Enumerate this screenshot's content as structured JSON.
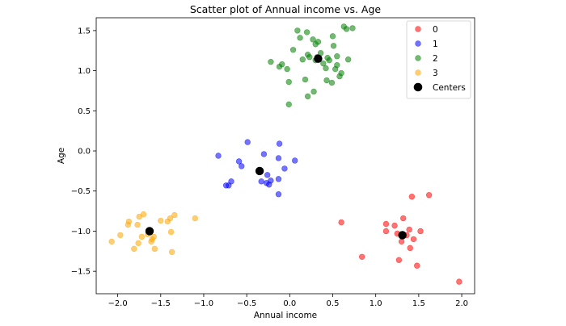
{
  "chart_data": {
    "type": "scatter",
    "title": "Scatter plot of Annual income vs. Age",
    "xlabel": "Annual income",
    "ylabel": "Age",
    "xlim": [
      -2.25,
      2.15
    ],
    "ylim": [
      -1.78,
      1.66
    ],
    "xticks": [
      "−2.0",
      "−1.5",
      "−1.0",
      "−0.5",
      "0.0",
      "0.5",
      "1.0",
      "1.5",
      "2.0"
    ],
    "xtick_values": [
      -2.0,
      -1.5,
      -1.0,
      -0.5,
      0.0,
      0.5,
      1.0,
      1.5,
      2.0
    ],
    "yticks": [
      "1.5",
      "1.0",
      "0.5",
      "0.0",
      "−0.5",
      "−1.0",
      "−1.5"
    ],
    "ytick_values": [
      1.5,
      1.0,
      0.5,
      0.0,
      -0.5,
      -1.0,
      -1.5
    ],
    "grid": false,
    "legend_position": "top-right",
    "series": [
      {
        "name": "0",
        "color": "#ff0000",
        "points": [
          [
            0.6,
            -0.89
          ],
          [
            0.84,
            -1.32
          ],
          [
            1.12,
            -0.91
          ],
          [
            1.12,
            -1.0
          ],
          [
            1.22,
            -0.93
          ],
          [
            1.25,
            -1.03
          ],
          [
            1.27,
            -1.36
          ],
          [
            1.3,
            -1.13
          ],
          [
            1.32,
            -0.84
          ],
          [
            1.36,
            -1.05
          ],
          [
            1.39,
            -0.98
          ],
          [
            1.4,
            -1.21
          ],
          [
            1.42,
            -0.57
          ],
          [
            1.44,
            -1.1
          ],
          [
            1.48,
            -1.43
          ],
          [
            1.52,
            -1.0
          ],
          [
            1.62,
            -0.55
          ],
          [
            1.97,
            -1.63
          ]
        ]
      },
      {
        "name": "1",
        "color": "#0000ff",
        "points": [
          [
            -0.83,
            -0.06
          ],
          [
            -0.74,
            -0.43
          ],
          [
            -0.71,
            -0.43
          ],
          [
            -0.68,
            -0.38
          ],
          [
            -0.59,
            -0.13
          ],
          [
            -0.56,
            -0.19
          ],
          [
            -0.49,
            0.11
          ],
          [
            -0.33,
            -0.38
          ],
          [
            -0.3,
            -0.04
          ],
          [
            -0.27,
            -0.4
          ],
          [
            -0.26,
            -0.3
          ],
          [
            -0.24,
            -0.42
          ],
          [
            -0.22,
            -0.37
          ],
          [
            -0.13,
            -0.09
          ],
          [
            -0.13,
            -0.35
          ],
          [
            -0.12,
            0.09
          ],
          [
            -0.13,
            -0.54
          ],
          [
            -0.06,
            -0.22
          ],
          [
            0.06,
            -0.12
          ]
        ]
      },
      {
        "name": "2",
        "color": "#008000",
        "points": [
          [
            -0.22,
            1.11
          ],
          [
            -0.12,
            1.05
          ],
          [
            -0.09,
            1.08
          ],
          [
            -0.03,
            1.02
          ],
          [
            -0.01,
            0.86
          ],
          [
            -0.01,
            0.58
          ],
          [
            0.04,
            1.26
          ],
          [
            0.09,
            1.5
          ],
          [
            0.12,
            1.41
          ],
          [
            0.15,
            1.14
          ],
          [
            0.18,
            0.89
          ],
          [
            0.2,
            1.48
          ],
          [
            0.21,
            1.2
          ],
          [
            0.21,
            0.68
          ],
          [
            0.23,
            1.17
          ],
          [
            0.27,
            1.39
          ],
          [
            0.3,
            1.13
          ],
          [
            0.33,
            1.36
          ],
          [
            0.36,
            1.22
          ],
          [
            0.39,
            1.09
          ],
          [
            0.42,
            1.03
          ],
          [
            0.43,
            0.88
          ],
          [
            0.46,
            1.13
          ],
          [
            0.49,
            0.85
          ],
          [
            0.5,
            1.43
          ],
          [
            0.51,
            1.31
          ],
          [
            0.53,
            1.02
          ],
          [
            0.55,
            1.18
          ],
          [
            0.55,
            1.07
          ],
          [
            0.58,
            0.93
          ],
          [
            0.6,
            0.97
          ],
          [
            0.63,
            1.55
          ],
          [
            0.66,
            1.52
          ],
          [
            0.68,
            1.14
          ],
          [
            0.73,
            1.53
          ],
          [
            0.28,
            0.74
          ],
          [
            0.32,
            1.17
          ],
          [
            0.44,
            1.16
          ],
          [
            0.3,
            1.33
          ]
        ]
      },
      {
        "name": "3",
        "color": "#ffa500",
        "points": [
          [
            -2.07,
            -1.13
          ],
          [
            -1.97,
            -1.05
          ],
          [
            -1.88,
            -0.92
          ],
          [
            -1.87,
            -0.88
          ],
          [
            -1.81,
            -1.22
          ],
          [
            -1.77,
            -0.92
          ],
          [
            -1.76,
            -1.15
          ],
          [
            -1.75,
            -0.82
          ],
          [
            -1.72,
            -1.07
          ],
          [
            -1.7,
            -0.79
          ],
          [
            -1.65,
            -1.04
          ],
          [
            -1.61,
            -1.13
          ],
          [
            -1.6,
            -1.1
          ],
          [
            -1.58,
            -1.07
          ],
          [
            -1.57,
            -1.22
          ],
          [
            -1.5,
            -0.87
          ],
          [
            -1.42,
            -0.88
          ],
          [
            -1.39,
            -0.84
          ],
          [
            -1.38,
            -1.01
          ],
          [
            -1.37,
            -1.26
          ],
          [
            -1.34,
            -0.8
          ],
          [
            -1.1,
            -0.84
          ]
        ]
      }
    ],
    "centers": {
      "name": "Centers",
      "color": "#000000",
      "points": [
        [
          1.31,
          -1.05
        ],
        [
          -0.35,
          -0.25
        ],
        [
          0.33,
          1.15
        ],
        [
          -1.63,
          -1.0
        ]
      ]
    }
  }
}
